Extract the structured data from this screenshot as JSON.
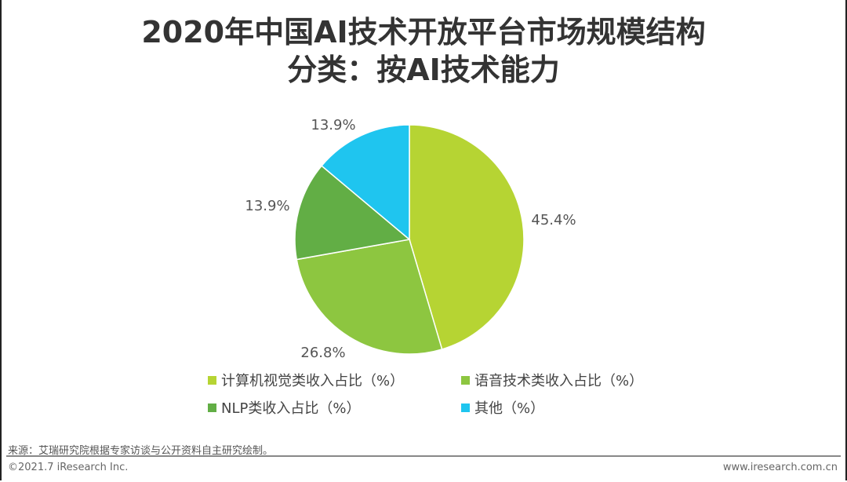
{
  "title_line1": "2020年中国AI技术开放平台市场规模结构",
  "title_line2": "分类：按AI技术能力",
  "chart_data": {
    "type": "pie",
    "title": "2020年中国AI技术开放平台市场规模结构分类：按AI技术能力",
    "start": "top, clockwise",
    "legend_position": "bottom",
    "slices": [
      {
        "name": "计算机视觉类收入占比（%）",
        "value": 45.4,
        "label": "45.4%",
        "color": "#b6d433"
      },
      {
        "name": "语音技术类收入占比（%）",
        "value": 26.8,
        "label": "26.8%",
        "color": "#8dc640"
      },
      {
        "name": "NLP类收入占比（%）",
        "value": 13.9,
        "label": "13.9%",
        "color": "#62ae45"
      },
      {
        "name": "其他（%）",
        "value": 13.9,
        "label": "13.9%",
        "color": "#1fc5ef"
      }
    ]
  },
  "footer": {
    "source": "来源：艾瑞研究院根据专家访谈与公开资料自主研究绘制。",
    "copyright": "©2021.7 iResearch Inc.",
    "website": "www.iresearch.com.cn"
  }
}
